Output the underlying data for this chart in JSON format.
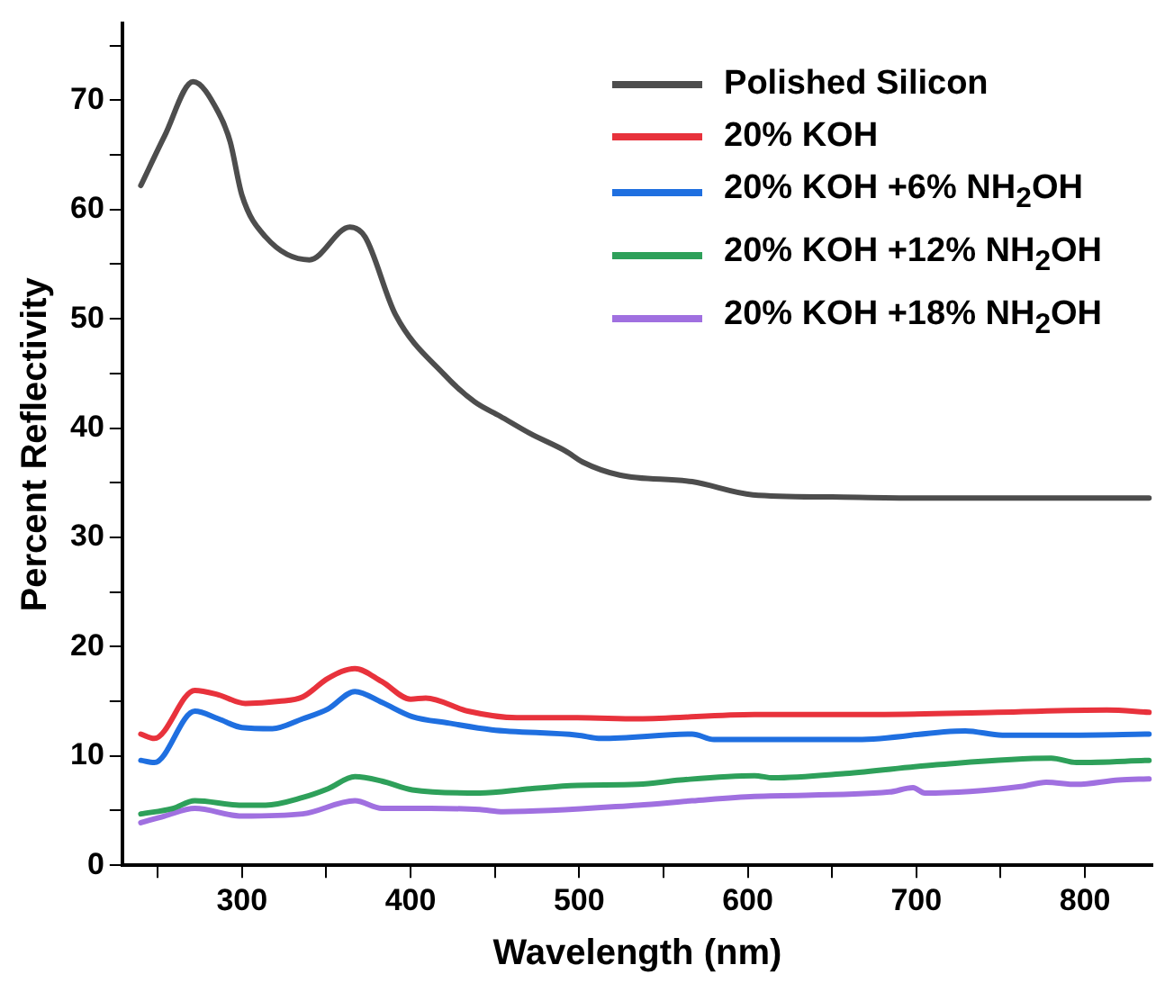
{
  "chart_data": {
    "type": "line",
    "xlabel": "Wavelength (nm)",
    "ylabel": "Percent Reflectivity",
    "xlim": [
      229,
      840
    ],
    "ylim": [
      0,
      77
    ],
    "xticks": [
      {
        "value": 250,
        "label": null
      },
      300,
      {
        "value": 350,
        "label": null
      },
      400,
      {
        "value": 450,
        "label": null
      },
      500,
      {
        "value": 550,
        "label": null
      },
      600,
      {
        "value": 650,
        "label": null
      },
      700,
      {
        "value": 750,
        "label": null
      },
      800
    ],
    "yticks": [
      0,
      {
        "value": 5,
        "label": null
      },
      10,
      {
        "value": 15,
        "label": null
      },
      20,
      {
        "value": 25,
        "label": null
      },
      30,
      {
        "value": 35,
        "label": null
      },
      40,
      {
        "value": 45,
        "label": null
      },
      50,
      {
        "value": 55,
        "label": null
      },
      60,
      {
        "value": 65,
        "label": null
      },
      70,
      {
        "value": 75,
        "label": null
      }
    ],
    "grid": false,
    "legend": "top right",
    "marker": "none",
    "line_style": "solid",
    "series": [
      {
        "name": "Polished Silicon",
        "color": "#4d4d4d",
        "x": [
          240,
          254,
          271,
          286,
          293,
          300,
          314,
          340,
          364,
          373,
          391,
          420,
          438,
          453,
          471,
          492,
          502,
          524,
          567,
          603,
          650,
          700,
          838
        ],
        "values": [
          62.2,
          66.7,
          71.7,
          68.9,
          66.2,
          61.3,
          57.5,
          55.4,
          58.4,
          57.5,
          50.4,
          44.9,
          42.4,
          41.1,
          39.5,
          37.9,
          36.9,
          35.7,
          35.1,
          33.9,
          33.7,
          33.6,
          33.6
        ]
      },
      {
        "name": "20% KOH",
        "color": "#e8323c",
        "x": [
          240,
          248,
          272,
          286,
          302,
          322,
          336,
          351,
          367,
          383,
          400,
          409,
          434,
          463,
          499,
          535,
          604,
          676,
          748,
          813,
          838
        ],
        "values": [
          12.0,
          11.6,
          16.0,
          15.6,
          14.8,
          15.0,
          15.4,
          17.1,
          18.0,
          16.8,
          15.2,
          15.3,
          14.1,
          13.5,
          13.5,
          13.4,
          13.8,
          13.8,
          14.0,
          14.2,
          14.0
        ]
      },
      {
        "name": "20% KOH +6% NH$_{2}$OH",
        "color": "#1f6fe0",
        "x": [
          240,
          248,
          272,
          286,
          300,
          318,
          336,
          351,
          367,
          383,
          401,
          423,
          448,
          499,
          513,
          567,
          580,
          665,
          729,
          751,
          791,
          838
        ],
        "values": [
          9.6,
          9.4,
          14.1,
          13.4,
          12.6,
          12.5,
          13.4,
          14.3,
          15.9,
          14.9,
          13.6,
          13.0,
          12.4,
          11.9,
          11.6,
          12.0,
          11.5,
          11.5,
          12.3,
          11.9,
          11.9,
          12.0
        ]
      },
      {
        "name": "20% KOH +12% NH$_{2}$OH",
        "color": "#2ea05a",
        "x": [
          240,
          259,
          272,
          300,
          314,
          336,
          351,
          367,
          383,
          401,
          441,
          471,
          499,
          535,
          560,
          604,
          615,
          658,
          712,
          780,
          795,
          838
        ],
        "values": [
          4.7,
          5.2,
          5.9,
          5.5,
          5.5,
          6.2,
          7.0,
          8.1,
          7.7,
          6.9,
          6.6,
          7.0,
          7.3,
          7.4,
          7.8,
          8.2,
          8.0,
          8.4,
          9.2,
          9.8,
          9.4,
          9.6
        ]
      },
      {
        "name": "20% KOH +18% NH$_{2}$OH",
        "color": "#a070e0",
        "x": [
          240,
          254,
          272,
          300,
          336,
          367,
          383,
          412,
          441,
          455,
          535,
          567,
          604,
          684,
          698,
          705,
          762,
          777,
          795,
          820,
          838
        ],
        "values": [
          3.9,
          4.5,
          5.2,
          4.5,
          4.7,
          5.9,
          5.2,
          5.2,
          5.1,
          4.9,
          5.5,
          5.9,
          6.3,
          6.7,
          7.1,
          6.6,
          7.2,
          7.6,
          7.4,
          7.8,
          7.9
        ]
      }
    ]
  }
}
